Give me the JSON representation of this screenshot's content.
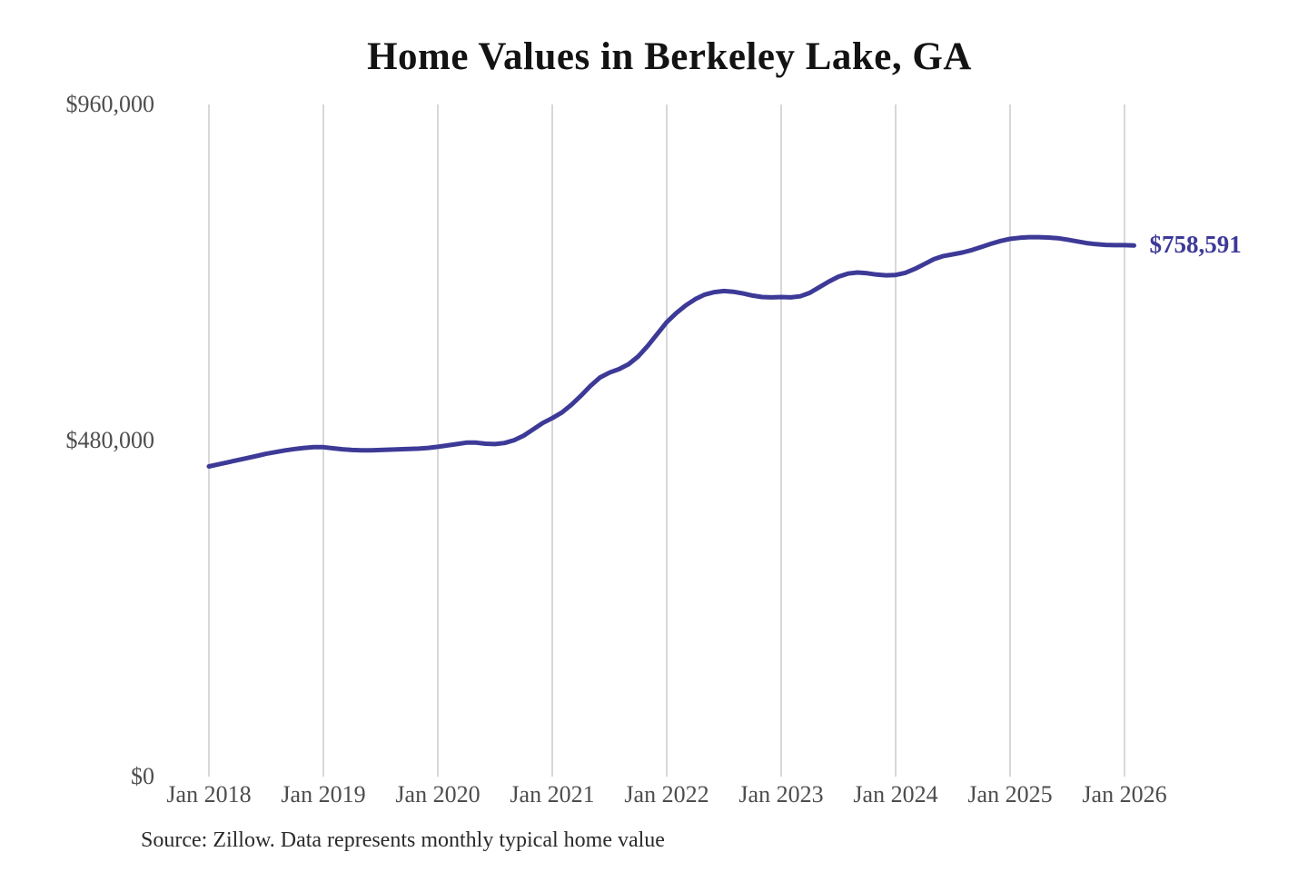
{
  "chart": {
    "title": "Home Values in Berkeley Lake, GA",
    "latest_value_label": "$758,591",
    "source_note": "Source: Zillow. Data represents monthly typical home value",
    "colors": {
      "line": "#3d3a97",
      "end_label_text": "#3d3a97",
      "gridline": "#cccccc",
      "axis_text": "#4d4d4d",
      "title_text": "#131313",
      "source_text": "#2b2b2b",
      "background": "#ffffff"
    }
  },
  "chart_data": {
    "type": "line",
    "title": "Home Values in Berkeley Lake, GA",
    "xlabel": "",
    "ylabel": "",
    "ylim": [
      0,
      960000
    ],
    "grid": "vertical-only",
    "legend": "none",
    "x_tick_labels": [
      "Jan 2018",
      "Jan 2019",
      "Jan 2020",
      "Jan 2021",
      "Jan 2022",
      "Jan 2023",
      "Jan 2024",
      "Jan 2025",
      "Jan 2026"
    ],
    "y_ticks": [
      {
        "label": "$0",
        "value": 0
      },
      {
        "label": "$480,000",
        "value": 480000
      },
      {
        "label": "$960,000",
        "value": 960000
      }
    ],
    "annotations": [
      {
        "text": "$758,591",
        "position": "end-of-line"
      }
    ],
    "series": [
      {
        "name": "Monthly typical home value",
        "frequency": "monthly",
        "start_month": "2018-01",
        "end_month": "2026-02",
        "final_value": 758591,
        "values": [
          443000,
          446000,
          449000,
          452000,
          455000,
          458000,
          461000,
          463500,
          466000,
          468000,
          469500,
          470500,
          470500,
          469000,
          467500,
          466500,
          466000,
          466000,
          466500,
          467000,
          467500,
          468000,
          468500,
          469500,
          471000,
          473000,
          475000,
          477000,
          477000,
          475500,
          475000,
          476500,
          480500,
          487000,
          496000,
          505000,
          512000,
          520000,
          531000,
          544000,
          558000,
          570000,
          577000,
          582000,
          589000,
          600000,
          615000,
          632000,
          649000,
          662000,
          673000,
          682000,
          688500,
          692000,
          693500,
          692500,
          690000,
          687000,
          685000,
          684500,
          685000,
          684500,
          686000,
          691000,
          699000,
          707000,
          714000,
          718500,
          720000,
          719000,
          717000,
          716000,
          716500,
          719500,
          725000,
          732000,
          739000,
          743500,
          746000,
          748500,
          752000,
          756500,
          761000,
          765000,
          768000,
          769500,
          770500,
          770500,
          770000,
          769000,
          767000,
          764500,
          762000,
          760500,
          759500,
          759000,
          759000,
          758591
        ]
      }
    ]
  }
}
